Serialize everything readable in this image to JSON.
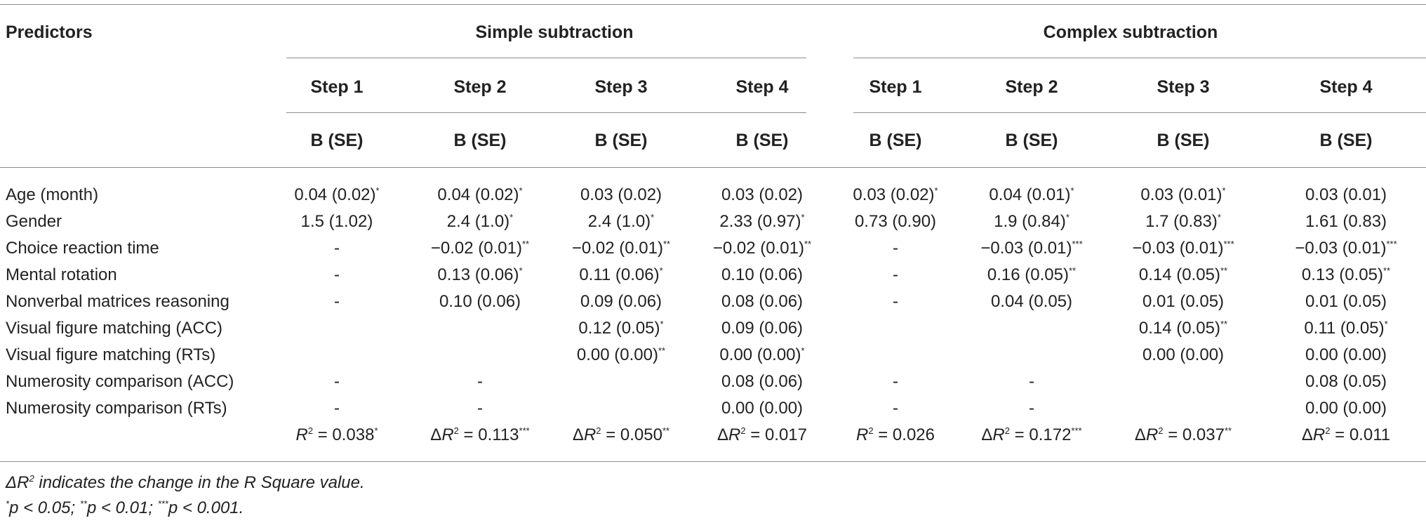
{
  "table": {
    "predictors_header": "Predictors",
    "group_simple": "Simple subtraction",
    "group_complex": "Complex subtraction",
    "steps": [
      "Step 1",
      "Step 2",
      "Step 3",
      "Step 4",
      "Step 1",
      "Step 2",
      "Step 3",
      "Step 4"
    ],
    "coef_headers": [
      "B (SE)",
      "B (SE)",
      "B (SE)",
      "B (SE)",
      "B (SE)",
      "B (SE)",
      "B (SE)",
      "B (SE)"
    ],
    "rows": [
      {
        "label": "Age (month)",
        "cells": [
          {
            "v": "0.04 (0.02)",
            "s": "*"
          },
          {
            "v": "0.04 (0.02)",
            "s": "*"
          },
          {
            "v": "0.03 (0.02)",
            "s": ""
          },
          {
            "v": "0.03 (0.02)",
            "s": ""
          },
          {
            "v": "0.03 (0.02)",
            "s": "*"
          },
          {
            "v": "0.04 (0.01)",
            "s": "*"
          },
          {
            "v": "0.03 (0.01)",
            "s": "*"
          },
          {
            "v": "0.03 (0.01)",
            "s": ""
          }
        ]
      },
      {
        "label": "Gender",
        "cells": [
          {
            "v": "1.5 (1.02)",
            "s": ""
          },
          {
            "v": "2.4 (1.0)",
            "s": "*"
          },
          {
            "v": "2.4 (1.0)",
            "s": "*"
          },
          {
            "v": "2.33 (0.97)",
            "s": "*"
          },
          {
            "v": "0.73 (0.90)",
            "s": ""
          },
          {
            "v": "1.9 (0.84)",
            "s": "*"
          },
          {
            "v": "1.7 (0.83)",
            "s": "*"
          },
          {
            "v": "1.61 (0.83)",
            "s": ""
          }
        ]
      },
      {
        "label": "Choice reaction time",
        "cells": [
          {
            "v": "-",
            "s": ""
          },
          {
            "v": "−0.02 (0.01)",
            "s": "**"
          },
          {
            "v": "−0.02 (0.01)",
            "s": "**"
          },
          {
            "v": "−0.02 (0.01)",
            "s": "**"
          },
          {
            "v": "-",
            "s": ""
          },
          {
            "v": "−0.03 (0.01)",
            "s": "***"
          },
          {
            "v": "−0.03 (0.01)",
            "s": "***"
          },
          {
            "v": "−0.03 (0.01)",
            "s": "***"
          }
        ]
      },
      {
        "label": "Mental rotation",
        "cells": [
          {
            "v": "-",
            "s": ""
          },
          {
            "v": "0.13 (0.06)",
            "s": "*"
          },
          {
            "v": "0.11 (0.06)",
            "s": "*"
          },
          {
            "v": "0.10 (0.06)",
            "s": ""
          },
          {
            "v": "-",
            "s": ""
          },
          {
            "v": "0.16 (0.05)",
            "s": "**"
          },
          {
            "v": "0.14 (0.05)",
            "s": "**"
          },
          {
            "v": "0.13 (0.05)",
            "s": "**"
          }
        ]
      },
      {
        "label": "Nonverbal matrices reasoning",
        "cells": [
          {
            "v": "-",
            "s": ""
          },
          {
            "v": "0.10 (0.06)",
            "s": ""
          },
          {
            "v": "0.09 (0.06)",
            "s": ""
          },
          {
            "v": "0.08 (0.06)",
            "s": ""
          },
          {
            "v": "-",
            "s": ""
          },
          {
            "v": "0.04 (0.05)",
            "s": ""
          },
          {
            "v": "0.01 (0.05)",
            "s": ""
          },
          {
            "v": "0.01 (0.05)",
            "s": ""
          }
        ]
      },
      {
        "label": "Visual figure matching (ACC)",
        "cells": [
          {
            "v": "",
            "s": ""
          },
          {
            "v": "",
            "s": ""
          },
          {
            "v": "0.12 (0.05)",
            "s": "*"
          },
          {
            "v": "0.09 (0.06)",
            "s": ""
          },
          {
            "v": "",
            "s": ""
          },
          {
            "v": "",
            "s": ""
          },
          {
            "v": "0.14 (0.05)",
            "s": "**"
          },
          {
            "v": "0.11 (0.05)",
            "s": "*"
          }
        ]
      },
      {
        "label": "Visual figure matching (RTs)",
        "cells": [
          {
            "v": "",
            "s": ""
          },
          {
            "v": "",
            "s": ""
          },
          {
            "v": "0.00 (0.00)",
            "s": "**"
          },
          {
            "v": "0.00 (0.00)",
            "s": "*"
          },
          {
            "v": "",
            "s": ""
          },
          {
            "v": "",
            "s": ""
          },
          {
            "v": "0.00 (0.00)",
            "s": ""
          },
          {
            "v": "0.00 (0.00)",
            "s": ""
          }
        ]
      },
      {
        "label": "Numerosity comparison (ACC)",
        "cells": [
          {
            "v": "-",
            "s": ""
          },
          {
            "v": "-",
            "s": ""
          },
          {
            "v": "",
            "s": ""
          },
          {
            "v": "0.08 (0.06)",
            "s": ""
          },
          {
            "v": "-",
            "s": ""
          },
          {
            "v": "-",
            "s": ""
          },
          {
            "v": "",
            "s": ""
          },
          {
            "v": "0.08 (0.05)",
            "s": ""
          }
        ]
      },
      {
        "label": "Numerosity comparison (RTs)",
        "cells": [
          {
            "v": "-",
            "s": ""
          },
          {
            "v": "-",
            "s": ""
          },
          {
            "v": "",
            "s": ""
          },
          {
            "v": "0.00 (0.00)",
            "s": ""
          },
          {
            "v": "-",
            "s": ""
          },
          {
            "v": "-",
            "s": ""
          },
          {
            "v": "",
            "s": ""
          },
          {
            "v": "0.00 (0.00)",
            "s": ""
          }
        ]
      }
    ],
    "r2_row": [
      {
        "p": "",
        "r": "R",
        "v": "0.038",
        "s": "*"
      },
      {
        "p": "Δ",
        "r": "R",
        "v": "0.113",
        "s": "***"
      },
      {
        "p": "Δ",
        "r": "R",
        "v": "0.050",
        "s": "**"
      },
      {
        "p": "Δ",
        "r": "R",
        "v": "0.017",
        "s": ""
      },
      {
        "p": "",
        "r": "R",
        "v": "0.026",
        "s": ""
      },
      {
        "p": "Δ",
        "r": "R",
        "v": "0.172",
        "s": "***"
      },
      {
        "p": "Δ",
        "r": "R",
        "v": "0.037",
        "s": "**"
      },
      {
        "p": "Δ",
        "r": "R",
        "v": "0.011",
        "s": ""
      }
    ]
  },
  "notes": {
    "note1_prefix": "Δ",
    "note1_r": "R",
    "note1_text": " indicates the change in the R Square value.",
    "note2_parts": [
      {
        "s": "*",
        "t": "p < 0.05; "
      },
      {
        "s": "**",
        "t": "p < 0.01; "
      },
      {
        "s": "***",
        "t": "p < 0.001."
      }
    ]
  }
}
